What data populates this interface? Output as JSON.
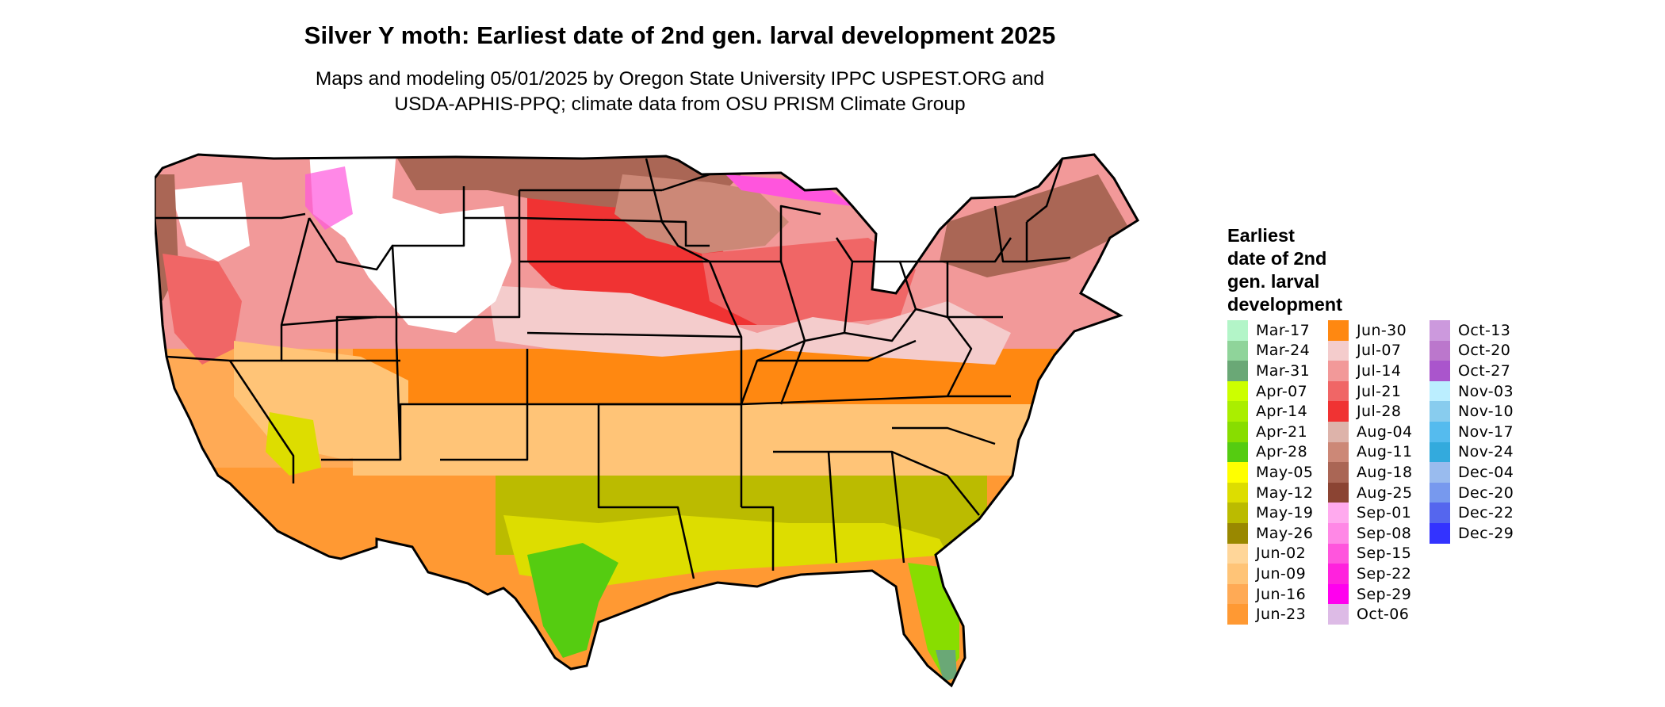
{
  "title": "Silver Y moth: Earliest date of 2nd gen. larval development 2025",
  "subtitle_lines": [
    "Maps and modeling 05/01/2025 by Oregon State University IPPC USPEST.ORG and",
    "USDA-APHIS-PPQ; climate data from OSU PRISM Climate Group"
  ],
  "legend": {
    "title_lines": [
      "Earliest",
      "date of 2nd",
      "gen. larval",
      "development"
    ],
    "columns": [
      [
        {
          "label": "Mar-17",
          "color": "#b3f5c8"
        },
        {
          "label": "Mar-24",
          "color": "#8fd49a"
        },
        {
          "label": "Mar-31",
          "color": "#6aa876"
        },
        {
          "label": "Apr-07",
          "color": "#ccff00"
        },
        {
          "label": "Apr-14",
          "color": "#aaee00"
        },
        {
          "label": "Apr-21",
          "color": "#88dd00"
        },
        {
          "label": "Apr-28",
          "color": "#55cc11"
        },
        {
          "label": "May-05",
          "color": "#ffff00"
        },
        {
          "label": "May-12",
          "color": "#dddd00"
        },
        {
          "label": "May-19",
          "color": "#bbbb00"
        },
        {
          "label": "May-26",
          "color": "#998800"
        },
        {
          "label": "Jun-02",
          "color": "#ffd699"
        },
        {
          "label": "Jun-09",
          "color": "#ffc477"
        },
        {
          "label": "Jun-16",
          "color": "#ffaa55"
        },
        {
          "label": "Jun-23",
          "color": "#ff9933"
        }
      ],
      [
        {
          "label": "Jun-30",
          "color": "#ff8811"
        },
        {
          "label": "Jul-07",
          "color": "#f4cccc"
        },
        {
          "label": "Jul-14",
          "color": "#f29999"
        },
        {
          "label": "Jul-21",
          "color": "#f06666"
        },
        {
          "label": "Jul-28",
          "color": "#f03333"
        },
        {
          "label": "Aug-04",
          "color": "#ddb3aa"
        },
        {
          "label": "Aug-11",
          "color": "#cc8877"
        },
        {
          "label": "Aug-18",
          "color": "#aa6655"
        },
        {
          "label": "Aug-25",
          "color": "#8b4433"
        },
        {
          "label": "Sep-01",
          "color": "#ffaaee"
        },
        {
          "label": "Sep-08",
          "color": "#ff88e6"
        },
        {
          "label": "Sep-15",
          "color": "#ff55dd"
        },
        {
          "label": "Sep-22",
          "color": "#ff22dd"
        },
        {
          "label": "Sep-29",
          "color": "#ff00ee"
        },
        {
          "label": "Oct-06",
          "color": "#ddbbe6"
        }
      ],
      [
        {
          "label": "Oct-13",
          "color": "#cc99dd"
        },
        {
          "label": "Oct-20",
          "color": "#bb77cc"
        },
        {
          "label": "Oct-27",
          "color": "#aa55cc"
        },
        {
          "label": "Nov-03",
          "color": "#bbeeff"
        },
        {
          "label": "Nov-10",
          "color": "#88ccee"
        },
        {
          "label": "Nov-17",
          "color": "#55bbee"
        },
        {
          "label": "Nov-24",
          "color": "#33aadd"
        },
        {
          "label": "Dec-04",
          "color": "#99bbee"
        },
        {
          "label": "Dec-20",
          "color": "#7799ee"
        },
        {
          "label": "Dec-22",
          "color": "#5566ee"
        },
        {
          "label": "Dec-29",
          "color": "#3333ff"
        }
      ]
    ]
  }
}
